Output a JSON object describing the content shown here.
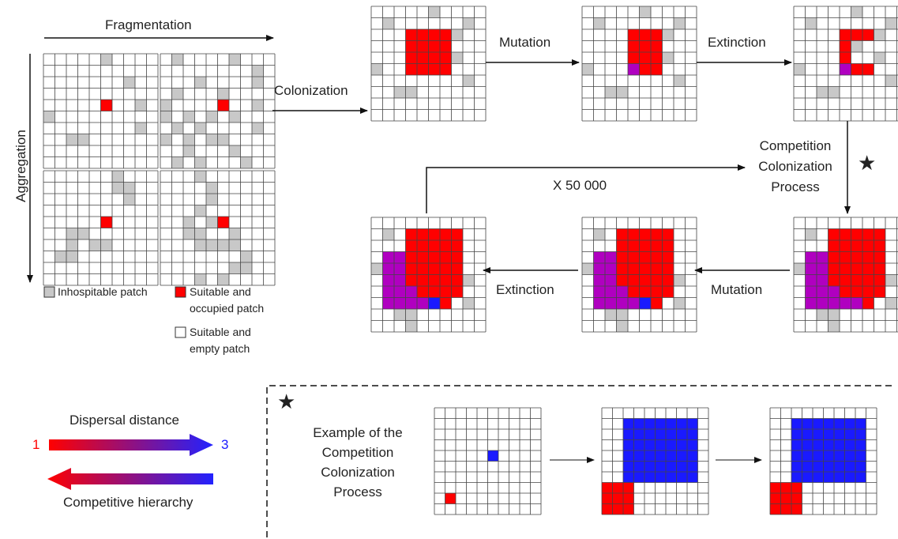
{
  "labels": {
    "fragmentation": "Fragmentation",
    "aggregation": "Aggregation",
    "colonization": "Colonization",
    "mutation_top": "Mutation",
    "extinction_top": "Extinction",
    "competition_process": [
      "Competition",
      "Colonization",
      "Process"
    ],
    "loop_count": "X 50 000",
    "extinction_mid": "Extinction",
    "mutation_mid": "Mutation",
    "dispersal_distance": "Dispersal distance",
    "competitive_hierarchy": "Competitive hierarchy",
    "dispersal_min": "1",
    "dispersal_max": "3",
    "star": "★",
    "example": [
      "Example of the",
      "Competition",
      "Colonization",
      "Process"
    ]
  },
  "legend": {
    "inhospitable": "Inhospitable patch",
    "occupied": [
      "Suitable and",
      "occupied patch"
    ],
    "empty": [
      "Suitable and",
      "empty patch"
    ]
  },
  "colors": {
    "inhospitable": "#c8c8c8",
    "red": "#ff0000",
    "purple": "#b000c0",
    "blue": "#1a1aff",
    "grid_line": "#444444"
  }
}
